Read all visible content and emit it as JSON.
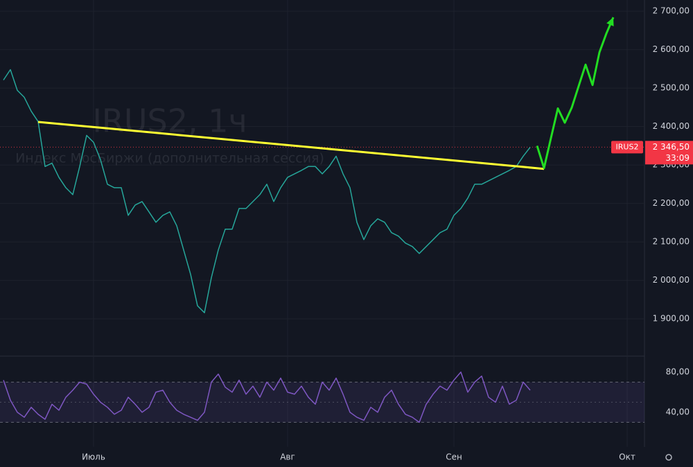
{
  "chart_data": [
    {
      "type": "line",
      "watermark": [
        "IRUS2, 1ч",
        "Индекс МосБиржи (дополнительная сессия)"
      ],
      "xlim": [
        -0.5,
        92.5
      ],
      "xticks": [
        {
          "value": 13,
          "label": "Июль"
        },
        {
          "value": 41,
          "label": "Авг"
        },
        {
          "value": 65,
          "label": "Сен"
        },
        {
          "value": 90,
          "label": "Окт"
        }
      ],
      "ylim": [
        1803,
        2729
      ],
      "yticks": [
        {
          "value": 1900,
          "label": "1 900,00"
        },
        {
          "value": 2000,
          "label": "2 000,00"
        },
        {
          "value": 2100,
          "label": "2 100,00"
        },
        {
          "value": 2200,
          "label": "2 200,00"
        },
        {
          "value": 2300,
          "label": "2 300,00"
        },
        {
          "value": 2400,
          "label": "2 400,00"
        },
        {
          "value": 2500,
          "label": "2 500,00"
        },
        {
          "value": 2600,
          "label": "2 600,00"
        },
        {
          "value": 2700,
          "label": "2 700,00"
        }
      ],
      "grid": true,
      "last_price": {
        "value": 2346.5,
        "label": "2 346,50",
        "symbol": "IRUS2",
        "countdown": "33:09",
        "color": "#f23645"
      },
      "series": [
        {
          "color": "#26a69a",
          "values": [
            2521,
            2548,
            2494,
            2476,
            2440,
            2413,
            2296,
            2305,
            2268,
            2241,
            2223,
            2296,
            2377,
            2359,
            2314,
            2250,
            2241,
            2241,
            2169,
            2196,
            2205,
            2178,
            2151,
            2169,
            2178,
            2142,
            2079,
            2016,
            1934,
            1916,
            2007,
            2079,
            2133,
            2133,
            2187,
            2187,
            2205,
            2223,
            2250,
            2205,
            2241,
            2268,
            2277,
            2286,
            2296,
            2296,
            2277,
            2296,
            2323,
            2277,
            2241,
            2151,
            2106,
            2142,
            2160,
            2151,
            2124,
            2115,
            2097,
            2088,
            2070,
            2088,
            2106,
            2124,
            2133,
            2169,
            2187,
            2214,
            2250,
            2250,
            2259,
            2268,
            2277,
            2286,
            2296,
            2323,
            2346
          ]
        },
        {
          "color": "#ffff33",
          "x": [
            5,
            78
          ],
          "values": [
            2412,
            2290
          ]
        },
        {
          "color": "#22dd22",
          "arrow": true,
          "x": [
            77,
            78,
            79,
            80,
            81,
            82,
            83,
            84,
            85,
            86,
            87,
            88
          ],
          "values": [
            2350,
            2292,
            2370,
            2447,
            2410,
            2449,
            2505,
            2561,
            2508,
            2593,
            2642,
            2684
          ]
        }
      ]
    },
    {
      "type": "line",
      "xlim": [
        -0.5,
        92.5
      ],
      "ylim": [
        5.5,
        95.2
      ],
      "yticks": [
        {
          "value": 40,
          "label": "40,00"
        },
        {
          "value": 80,
          "label": "80,00"
        }
      ],
      "band": [
        30,
        70
      ],
      "midline": 50,
      "series": [
        {
          "color": "#7e57c2",
          "values": [
            72,
            52,
            40,
            35,
            45,
            38,
            33,
            48,
            42,
            55,
            62,
            70,
            68,
            58,
            50,
            45,
            38,
            42,
            55,
            48,
            40,
            45,
            60,
            62,
            50,
            42,
            38,
            35,
            32,
            40,
            70,
            78,
            65,
            60,
            72,
            58,
            66,
            55,
            70,
            62,
            74,
            60,
            58,
            66,
            55,
            48,
            70,
            62,
            74,
            58,
            40,
            35,
            32,
            45,
            40,
            55,
            62,
            48,
            38,
            35,
            30,
            48,
            58,
            66,
            62,
            72,
            80,
            60,
            70,
            76,
            55,
            50,
            66,
            48,
            52,
            70,
            62
          ]
        }
      ]
    }
  ]
}
